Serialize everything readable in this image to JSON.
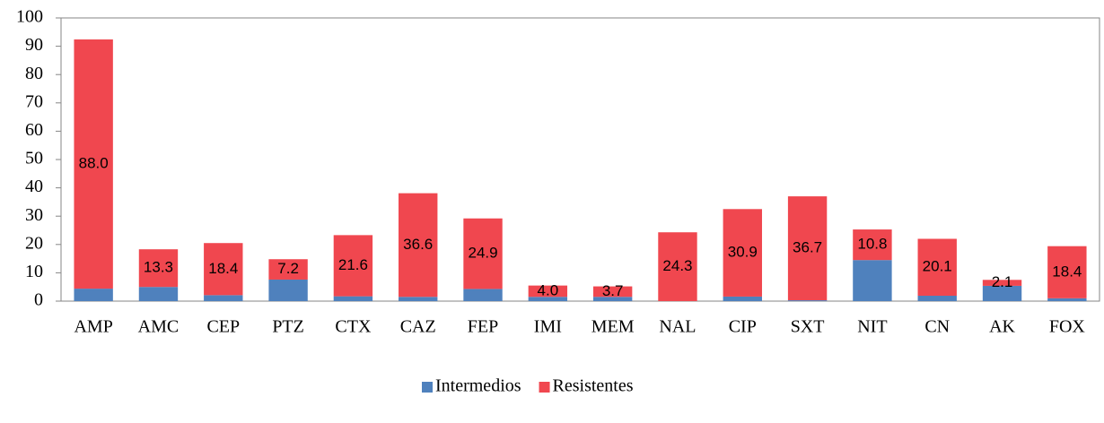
{
  "chart_data": {
    "type": "stacked_bar",
    "categories": [
      "AMP",
      "AMC",
      "CEP",
      "PTZ",
      "CTX",
      "CAZ",
      "FEP",
      "IMI",
      "MEM",
      "NAL",
      "CIP",
      "SXT",
      "NIT",
      "CN",
      "AK",
      "FOX"
    ],
    "series": [
      {
        "name": "Intermedios",
        "color": "#4f81bd",
        "values": [
          4.4,
          5.0,
          2.1,
          7.6,
          1.7,
          1.5,
          4.3,
          1.5,
          1.5,
          0,
          1.6,
          0.3,
          14.5,
          1.9,
          5.4,
          1.0
        ]
      },
      {
        "name": "Resistentes",
        "color": "#f0474f",
        "values": [
          88.0,
          13.3,
          18.4,
          7.2,
          21.6,
          36.6,
          24.9,
          4.0,
          3.7,
          24.3,
          30.9,
          36.7,
          10.8,
          20.1,
          2.1,
          18.4
        ],
        "value_labels": [
          "88.0",
          "13.3",
          "18.4",
          "7.2",
          "21.6",
          "36.6",
          "24.9",
          "4.0",
          "3.7",
          "24.3",
          "30.9",
          "36.7",
          "10.8",
          "20.1",
          "2.1",
          "18.4"
        ]
      }
    ],
    "ylim": [
      0,
      100
    ],
    "yticks": [
      0,
      10,
      20,
      30,
      40,
      50,
      60,
      70,
      80,
      90,
      100
    ],
    "grid": false,
    "legend": "bottom"
  }
}
